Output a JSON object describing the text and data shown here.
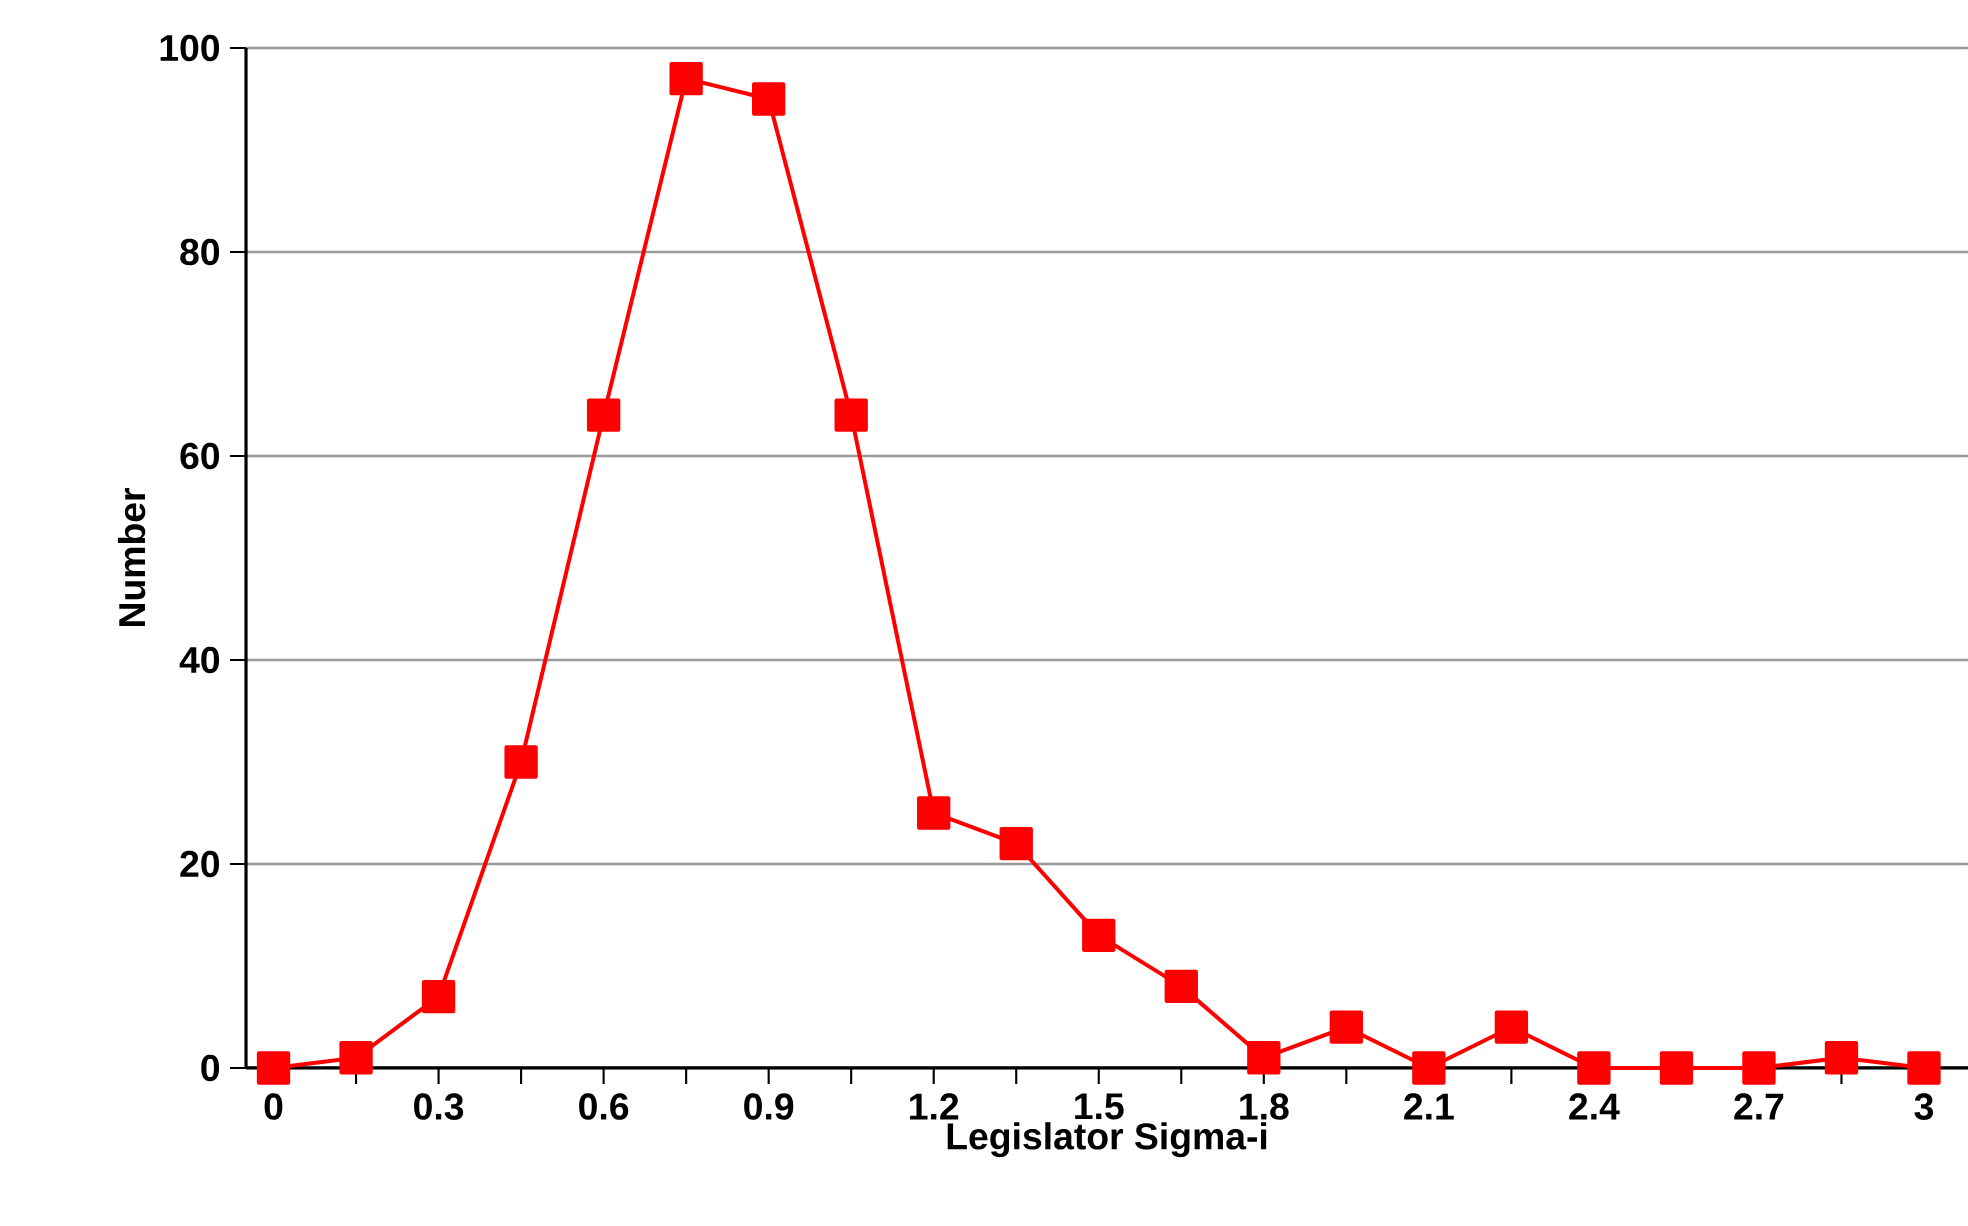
{
  "chart_data": {
    "type": "line",
    "xlabel": "Legislator Sigma-i",
    "ylabel": "Number",
    "x": [
      0,
      0.15,
      0.3,
      0.45,
      0.6,
      0.75,
      0.9,
      1.05,
      1.2,
      1.35,
      1.5,
      1.65,
      1.8,
      1.95,
      2.1,
      2.25,
      2.4,
      2.55,
      2.7,
      2.85,
      3
    ],
    "series": [
      {
        "color": "#ff0000",
        "values": [
          0,
          1,
          7,
          30,
          64,
          97,
          95,
          64,
          25,
          22,
          13,
          8,
          1,
          4,
          0,
          4,
          0,
          0,
          0,
          1,
          0
        ]
      }
    ],
    "xlim": [
      -0.05,
      3.08
    ],
    "ylim": [
      0,
      100
    ],
    "xticks": [
      0,
      {
        "value": 0.15,
        "label": null
      },
      0.3,
      {
        "value": 0.45,
        "label": null
      },
      0.6,
      {
        "value": 0.75,
        "label": null
      },
      0.9,
      {
        "value": 1.05,
        "label": null
      },
      1.2,
      {
        "value": 1.35,
        "label": null
      },
      1.5,
      {
        "value": 1.65,
        "label": null
      },
      1.8,
      {
        "value": 1.95,
        "label": null
      },
      2.1,
      {
        "value": 2.25,
        "label": null
      },
      2.4,
      {
        "value": 2.55,
        "label": null
      },
      2.7,
      {
        "value": 2.85,
        "label": null
      },
      3
    ],
    "yticks": [
      0,
      20,
      40,
      60,
      80,
      100
    ],
    "grid": "y",
    "marker": "square",
    "line_style": "solid"
  }
}
